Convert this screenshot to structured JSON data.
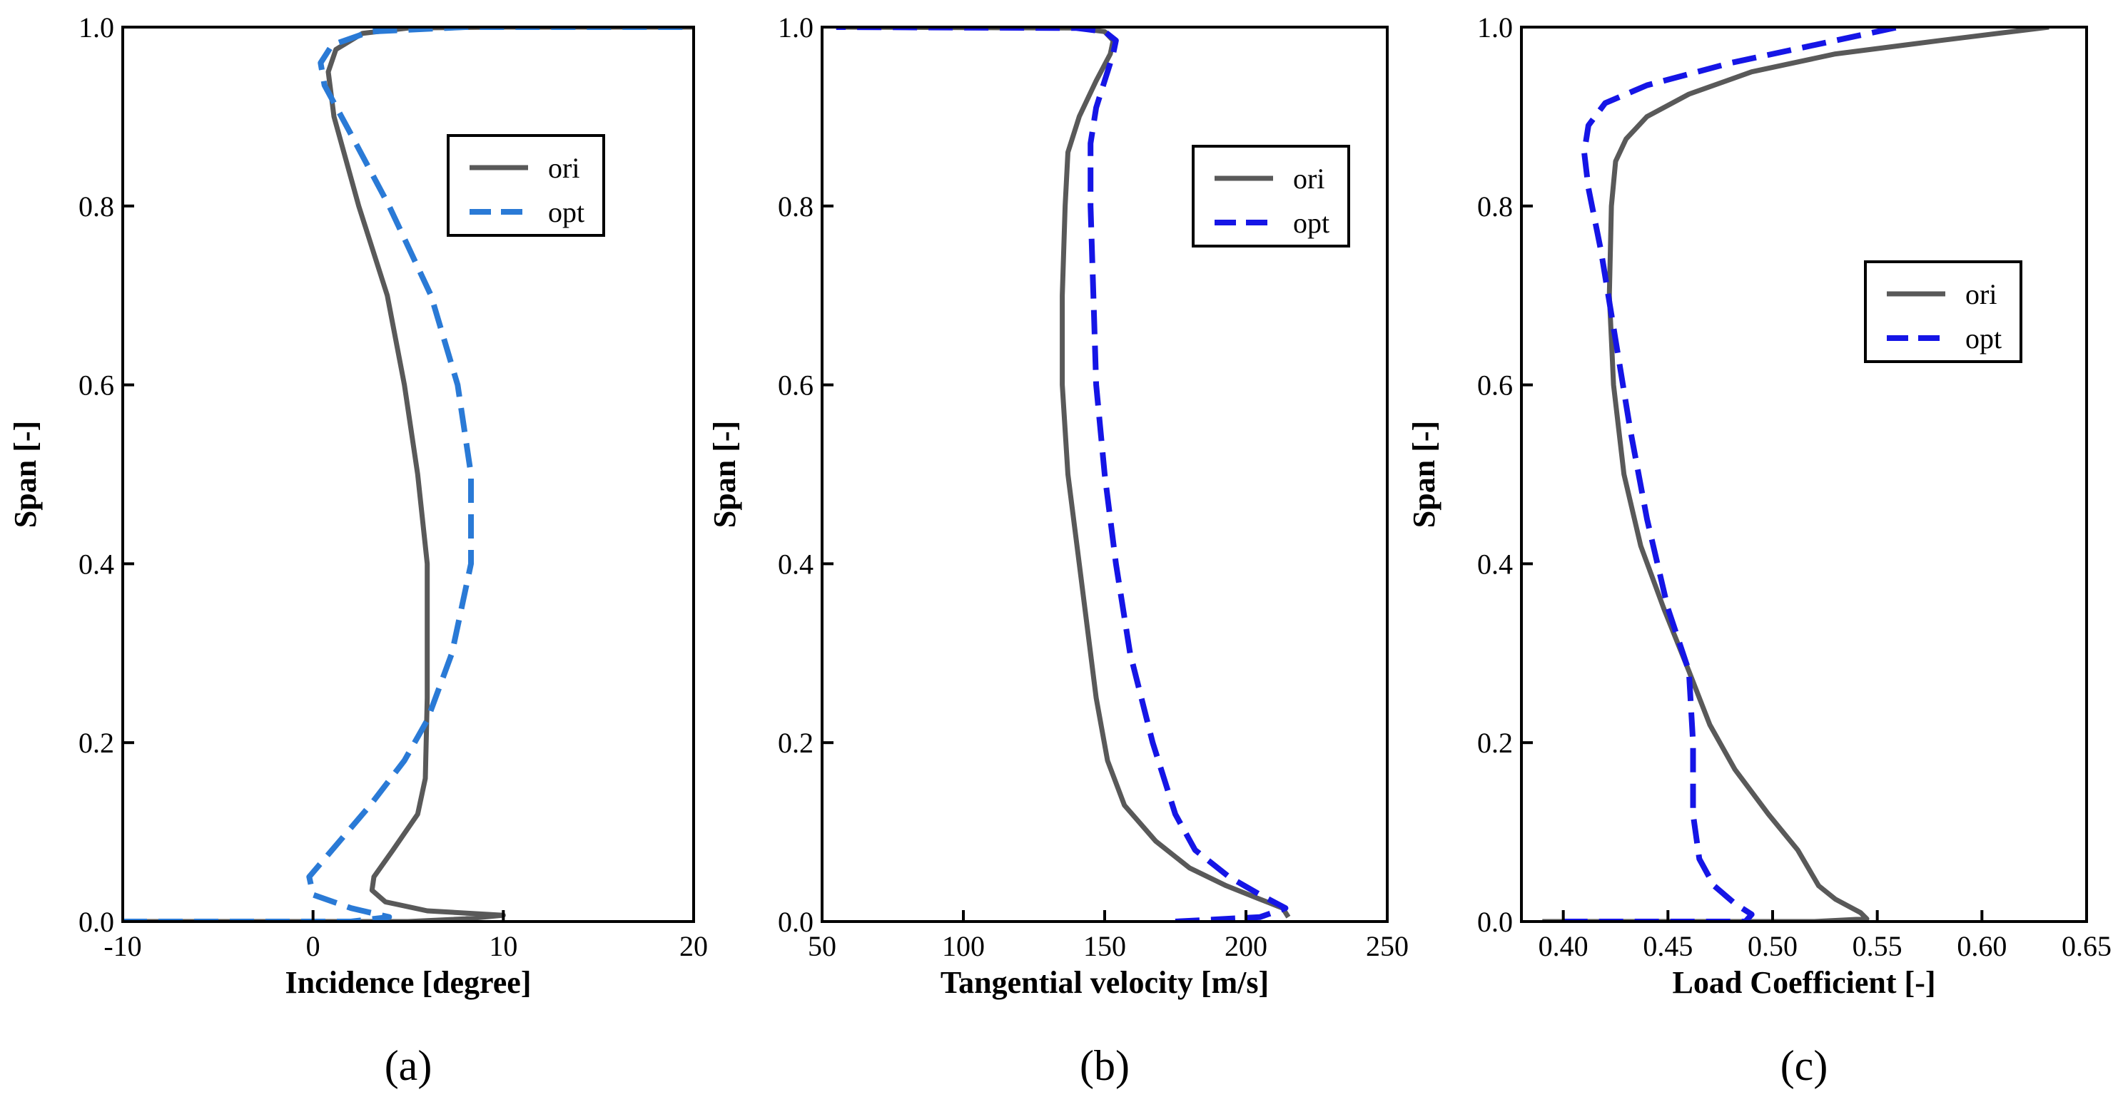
{
  "chart_data": [
    {
      "type": "line",
      "panel_label": "(a)",
      "xlabel": "Incidence [degree]",
      "ylabel": "Span [-]",
      "xlim": [
        -10,
        20
      ],
      "ylim": [
        0,
        1
      ],
      "xticks": [
        "-10",
        "0",
        "10",
        "20"
      ],
      "yticks": [
        "0.0",
        "0.2",
        "0.4",
        "0.6",
        "0.8",
        "1.0"
      ],
      "legend_position": "top-right",
      "series": [
        {
          "name": "ori",
          "color": "#595959",
          "style": "solid",
          "points": [
            [
              -10,
              0.0
            ],
            [
              5,
              0.0
            ],
            [
              8,
              0.003
            ],
            [
              10,
              0.007
            ],
            [
              6,
              0.012
            ],
            [
              3.8,
              0.022
            ],
            [
              3.1,
              0.035
            ],
            [
              3.2,
              0.05
            ],
            [
              4.2,
              0.08
            ],
            [
              5.5,
              0.12
            ],
            [
              5.9,
              0.16
            ],
            [
              6.0,
              0.25
            ],
            [
              6.0,
              0.4
            ],
            [
              5.5,
              0.5
            ],
            [
              4.8,
              0.6
            ],
            [
              3.9,
              0.7
            ],
            [
              2.4,
              0.8
            ],
            [
              1.1,
              0.9
            ],
            [
              0.8,
              0.95
            ],
            [
              1.2,
              0.975
            ],
            [
              2.6,
              0.993
            ],
            [
              5,
              0.999
            ],
            [
              10,
              1.0
            ],
            [
              20,
              1.0
            ]
          ]
        },
        {
          "name": "opt",
          "color": "#2a7ad6",
          "style": "dashed",
          "points": [
            [
              -10,
              0.0
            ],
            [
              2,
              0.0
            ],
            [
              4,
              0.005
            ],
            [
              2,
              0.015
            ],
            [
              0,
              0.03
            ],
            [
              -0.2,
              0.05
            ],
            [
              0.8,
              0.075
            ],
            [
              3.0,
              0.13
            ],
            [
              4.8,
              0.18
            ],
            [
              6.0,
              0.225
            ],
            [
              7.3,
              0.3
            ],
            [
              8.3,
              0.4
            ],
            [
              8.3,
              0.5
            ],
            [
              7.6,
              0.6
            ],
            [
              6.2,
              0.7
            ],
            [
              4.0,
              0.8
            ],
            [
              2.0,
              0.88
            ],
            [
              0.6,
              0.935
            ],
            [
              0.4,
              0.96
            ],
            [
              1.0,
              0.98
            ],
            [
              3.0,
              0.995
            ],
            [
              8,
              1.0
            ],
            [
              20,
              1.0
            ]
          ]
        }
      ]
    },
    {
      "type": "line",
      "panel_label": "(b)",
      "xlabel": "Tangential velocity [m/s]",
      "ylabel": "Span [-]",
      "xlim": [
        50,
        250
      ],
      "ylim": [
        0,
        1
      ],
      "xticks": [
        "50",
        "100",
        "150",
        "200",
        "250"
      ],
      "yticks": [
        "0.0",
        "0.2",
        "0.4",
        "0.6",
        "0.8",
        "1.0"
      ],
      "legend_position": "top-right",
      "series": [
        {
          "name": "ori",
          "color": "#595959",
          "style": "solid",
          "points": [
            [
              215,
              0.005
            ],
            [
              213,
              0.015
            ],
            [
              205,
              0.025
            ],
            [
              193,
              0.04
            ],
            [
              180,
              0.06
            ],
            [
              168,
              0.09
            ],
            [
              157,
              0.13
            ],
            [
              151,
              0.18
            ],
            [
              147,
              0.25
            ],
            [
              141,
              0.4
            ],
            [
              137,
              0.5
            ],
            [
              135,
              0.6
            ],
            [
              135,
              0.7
            ],
            [
              136,
              0.8
            ],
            [
              137,
              0.86
            ],
            [
              141,
              0.9
            ],
            [
              147,
              0.94
            ],
            [
              152,
              0.97
            ],
            [
              153,
              0.985
            ],
            [
              150,
              0.995
            ],
            [
              140,
              0.999
            ],
            [
              55,
              1.0
            ]
          ]
        },
        {
          "name": "opt",
          "color": "#1515e6",
          "style": "dashed",
          "points": [
            [
              175,
              0.0
            ],
            [
              205,
              0.005
            ],
            [
              214,
              0.015
            ],
            [
              205,
              0.03
            ],
            [
              194,
              0.05
            ],
            [
              182,
              0.08
            ],
            [
              175,
              0.12
            ],
            [
              167,
              0.2
            ],
            [
              159,
              0.3
            ],
            [
              154,
              0.4
            ],
            [
              150,
              0.5
            ],
            [
              147,
              0.6
            ],
            [
              146,
              0.7
            ],
            [
              145,
              0.8
            ],
            [
              145,
              0.87
            ],
            [
              147,
              0.91
            ],
            [
              150,
              0.94
            ],
            [
              153,
              0.97
            ],
            [
              154,
              0.985
            ],
            [
              150,
              0.995
            ],
            [
              140,
              0.999
            ],
            [
              55,
              1.0
            ]
          ]
        }
      ]
    },
    {
      "type": "line",
      "panel_label": "(c)",
      "xlabel": "Load Coefficient [-]",
      "ylabel": "Span [-]",
      "xlim": [
        0.38,
        0.65
      ],
      "ylim": [
        0,
        1
      ],
      "xticks": [
        "0.40",
        "0.45",
        "0.50",
        "0.55",
        "0.60",
        "0.65"
      ],
      "yticks": [
        "0.0",
        "0.2",
        "0.4",
        "0.6",
        "0.8",
        "1.0"
      ],
      "legend_position": "top-right",
      "series": [
        {
          "name": "ori",
          "color": "#595959",
          "style": "solid",
          "points": [
            [
              0.39,
              0.0
            ],
            [
              0.52,
              0.0
            ],
            [
              0.545,
              0.003
            ],
            [
              0.542,
              0.01
            ],
            [
              0.53,
              0.025
            ],
            [
              0.522,
              0.04
            ],
            [
              0.512,
              0.08
            ],
            [
              0.498,
              0.12
            ],
            [
              0.482,
              0.17
            ],
            [
              0.47,
              0.22
            ],
            [
              0.46,
              0.28
            ],
            [
              0.448,
              0.35
            ],
            [
              0.437,
              0.42
            ],
            [
              0.429,
              0.5
            ],
            [
              0.424,
              0.6
            ],
            [
              0.422,
              0.7
            ],
            [
              0.423,
              0.8
            ],
            [
              0.425,
              0.85
            ],
            [
              0.43,
              0.875
            ],
            [
              0.44,
              0.9
            ],
            [
              0.46,
              0.925
            ],
            [
              0.49,
              0.95
            ],
            [
              0.53,
              0.97
            ],
            [
              0.58,
              0.985
            ],
            [
              0.632,
              1.0
            ]
          ]
        },
        {
          "name": "opt",
          "color": "#1515e6",
          "style": "dashed",
          "points": [
            [
              0.4,
              0.0
            ],
            [
              0.487,
              0.0
            ],
            [
              0.49,
              0.008
            ],
            [
              0.482,
              0.02
            ],
            [
              0.472,
              0.04
            ],
            [
              0.465,
              0.07
            ],
            [
              0.462,
              0.12
            ],
            [
              0.462,
              0.2
            ],
            [
              0.46,
              0.28
            ],
            [
              0.45,
              0.35
            ],
            [
              0.44,
              0.45
            ],
            [
              0.432,
              0.55
            ],
            [
              0.425,
              0.65
            ],
            [
              0.418,
              0.75
            ],
            [
              0.412,
              0.82
            ],
            [
              0.41,
              0.86
            ],
            [
              0.412,
              0.89
            ],
            [
              0.42,
              0.915
            ],
            [
              0.44,
              0.935
            ],
            [
              0.48,
              0.96
            ],
            [
              0.52,
              0.98
            ],
            [
              0.56,
              1.0
            ]
          ]
        }
      ]
    }
  ]
}
